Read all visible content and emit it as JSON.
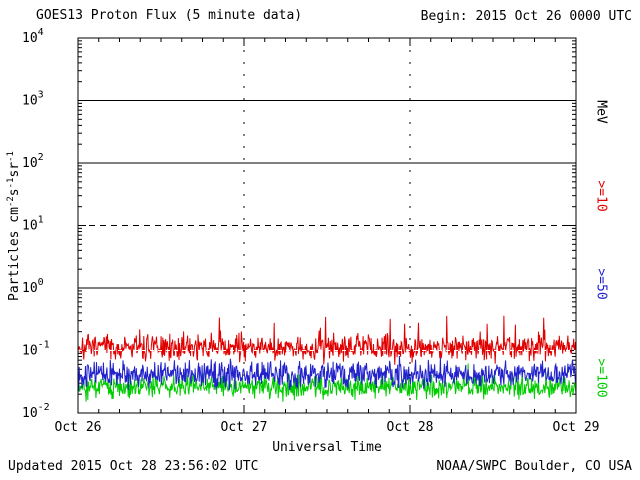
{
  "header": {
    "title": "GOES13 Proton Flux (5 minute data)",
    "begin_label": "Begin: 2015 Oct 26 0000 UTC"
  },
  "footer": {
    "updated": "Updated 2015 Oct 28 23:56:02 UTC",
    "credit": "NOAA/SWPC Boulder, CO USA"
  },
  "axes": {
    "xlabel": "Universal Time",
    "x_ticks": [
      "Oct 26",
      "Oct 27",
      "Oct 28",
      "Oct 29"
    ],
    "y_tick_exponents": [
      4,
      3,
      2,
      1,
      0,
      -1,
      -2
    ],
    "ylabel_parts": [
      {
        "t": "Particles cm"
      },
      {
        "sup": "-2"
      },
      {
        "t": "s"
      },
      {
        "sup": "-1"
      },
      {
        "t": "sr"
      },
      {
        "sup": "-1"
      }
    ]
  },
  "right_labels": [
    {
      "label": "MeV",
      "color": "#000000"
    },
    {
      "label": ">=10",
      "color": "#e00000"
    },
    {
      "label": ">=50",
      "color": "#2222cc"
    },
    {
      "label": ">=100",
      "color": "#00cc00"
    }
  ],
  "chart_data": {
    "type": "line",
    "title": "GOES13 Proton Flux (5 minute data)",
    "xlabel": "Universal Time",
    "ylabel": "Particles cm^-2 s^-1 sr^-1",
    "cadence": "5 minute",
    "x_start": "2015 Oct 26 0000 UTC",
    "x_end": "2015 Oct 29 0000 UTC",
    "x_tick_labels": [
      "Oct 26",
      "Oct 27",
      "Oct 28",
      "Oct 29"
    ],
    "y_scale": "log10",
    "y_range": [
      0.01,
      10000
    ],
    "y_range_log10": [
      -2,
      4
    ],
    "grid_on": true,
    "gridlines": {
      "horizontal": [
        {
          "value": 1000,
          "style": "solid",
          "color": "#000000"
        },
        {
          "value": 100,
          "style": "solid",
          "color": "#000000"
        },
        {
          "value": 10,
          "style": "dashed",
          "color": "#000000"
        },
        {
          "value": 1,
          "style": "solid",
          "color": "#000000"
        },
        {
          "value": 0.1,
          "style": "dashed",
          "color": "#ffffff",
          "overlay": true
        }
      ],
      "vertical_dashed_at": [
        "Oct 27",
        "Oct 28"
      ]
    },
    "legend_position": "right",
    "points_per_series": 864,
    "series": [
      {
        "name": ">=10 MeV",
        "color": "#e00000",
        "approx_level": 0.11,
        "range": [
          0.055,
          0.45
        ],
        "log10_mean": -0.95,
        "log10_sd": 0.1,
        "spike_prob": 0.03,
        "spike_mag": 0.45,
        "seed": 7
      },
      {
        "name": ">=50 MeV",
        "color": "#2222cc",
        "approx_level": 0.042,
        "range": [
          0.02,
          0.1
        ],
        "log10_mean": -1.38,
        "log10_sd": 0.1,
        "spike_prob": 0.015,
        "spike_mag": 0.25,
        "seed": 13
      },
      {
        "name": ">=100 MeV",
        "color": "#00cc00",
        "approx_level": 0.026,
        "range": [
          0.013,
          0.06
        ],
        "log10_mean": -1.58,
        "log10_sd": 0.09,
        "spike_prob": 0.012,
        "spike_mag": 0.22,
        "seed": 21
      }
    ]
  }
}
